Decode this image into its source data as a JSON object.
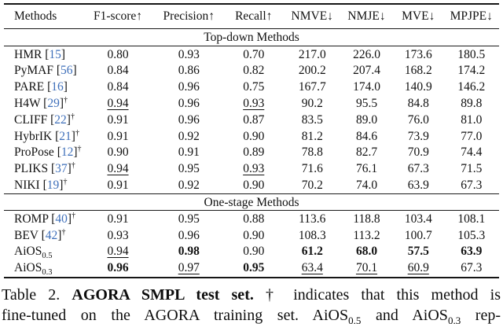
{
  "colors": {
    "citation_blue": "#3e6fba",
    "text": "#111111"
  },
  "table": {
    "columns": [
      "Methods",
      "F1-score↑",
      "Precision↑",
      "Recall↑",
      "NMVE↓",
      "NMJE↓",
      "MVE↓",
      "MPJPE↓"
    ],
    "sections": [
      {
        "label": "Top-down Methods",
        "rows": [
          {
            "method": "HMR",
            "ref": "15",
            "dagger": false,
            "sub": "",
            "cells": [
              "0.80",
              "0.93",
              "0.70",
              "217.0",
              "226.0",
              "173.6",
              "180.5"
            ],
            "styles": [
              "n",
              "n",
              "n",
              "n",
              "n",
              "n",
              "n"
            ]
          },
          {
            "method": "PyMAF",
            "ref": "56",
            "dagger": false,
            "sub": "",
            "cells": [
              "0.84",
              "0.86",
              "0.82",
              "200.2",
              "207.4",
              "168.2",
              "174.2"
            ],
            "styles": [
              "n",
              "n",
              "n",
              "n",
              "n",
              "n",
              "n"
            ]
          },
          {
            "method": "PARE",
            "ref": "16",
            "dagger": false,
            "sub": "",
            "cells": [
              "0.84",
              "0.96",
              "0.75",
              "167.7",
              "174.0",
              "140.9",
              "146.2"
            ],
            "styles": [
              "n",
              "n",
              "n",
              "n",
              "n",
              "n",
              "n"
            ]
          },
          {
            "method": "H4W",
            "ref": "29",
            "dagger": true,
            "sub": "",
            "cells": [
              "0.94",
              "0.96",
              "0.93",
              "90.2",
              "95.5",
              "84.8",
              "89.8"
            ],
            "styles": [
              "u",
              "n",
              "u",
              "n",
              "n",
              "n",
              "n"
            ]
          },
          {
            "method": "CLIFF",
            "ref": "22",
            "dagger": true,
            "sub": "",
            "cells": [
              "0.91",
              "0.96",
              "0.87",
              "83.5",
              "89.0",
              "76.0",
              "81.0"
            ],
            "styles": [
              "n",
              "n",
              "n",
              "n",
              "n",
              "n",
              "n"
            ]
          },
          {
            "method": "HybrIK",
            "ref": "21",
            "dagger": true,
            "sub": "",
            "cells": [
              "0.91",
              "0.92",
              "0.90",
              "81.2",
              "84.6",
              "73.9",
              "77.0"
            ],
            "styles": [
              "n",
              "n",
              "n",
              "n",
              "n",
              "n",
              "n"
            ]
          },
          {
            "method": "ProPose",
            "ref": "12",
            "dagger": true,
            "sub": "",
            "cells": [
              "0.90",
              "0.91",
              "0.89",
              "78.8",
              "82.7",
              "70.9",
              "74.4"
            ],
            "styles": [
              "n",
              "n",
              "n",
              "n",
              "n",
              "n",
              "n"
            ]
          },
          {
            "method": "PLIKS",
            "ref": "37",
            "dagger": true,
            "sub": "",
            "cells": [
              "0.94",
              "0.95",
              "0.93",
              "71.6",
              "76.1",
              "67.3",
              "71.5"
            ],
            "styles": [
              "u",
              "n",
              "u",
              "n",
              "n",
              "n",
              "n"
            ]
          },
          {
            "method": "NIKI",
            "ref": "19",
            "dagger": true,
            "sub": "",
            "cells": [
              "0.91",
              "0.92",
              "0.90",
              "70.2",
              "74.0",
              "63.9",
              "67.3"
            ],
            "styles": [
              "n",
              "n",
              "n",
              "n",
              "n",
              "n",
              "n"
            ]
          }
        ]
      },
      {
        "label": "One-stage Methods",
        "rows": [
          {
            "method": "ROMP",
            "ref": "40",
            "dagger": true,
            "sub": "",
            "cells": [
              "0.91",
              "0.95",
              "0.88",
              "113.6",
              "118.8",
              "103.4",
              "108.1"
            ],
            "styles": [
              "n",
              "n",
              "n",
              "n",
              "n",
              "n",
              "n"
            ]
          },
          {
            "method": "BEV",
            "ref": "42",
            "dagger": true,
            "sub": "",
            "cells": [
              "0.93",
              "0.96",
              "0.90",
              "108.3",
              "113.2",
              "100.7",
              "105.3"
            ],
            "styles": [
              "n",
              "n",
              "n",
              "n",
              "n",
              "n",
              "n"
            ]
          },
          {
            "method": "AiOS",
            "ref": "",
            "dagger": false,
            "sub": "0.5",
            "cells": [
              "0.94",
              "0.98",
              "0.90",
              "61.2",
              "68.0",
              "57.5",
              "63.9"
            ],
            "styles": [
              "u",
              "b",
              "n",
              "b",
              "b",
              "b",
              "b"
            ]
          },
          {
            "method": "AiOS",
            "ref": "",
            "dagger": false,
            "sub": "0.3",
            "cells": [
              "0.96",
              "0.97",
              "0.95",
              "63.4",
              "70.1",
              "60.9",
              "67.3"
            ],
            "styles": [
              "b",
              "u",
              "b",
              "u",
              "u",
              "u",
              "n"
            ]
          }
        ]
      }
    ]
  },
  "caption": {
    "label": "Table 2.",
    "title_bold": "AGORA SMPL test set.",
    "line1_rest": "† indicates that this method is",
    "line2": {
      "part1": "fine-tuned on the AGORA training set. AiOS",
      "sub1": "0.5",
      "part2": " and AiOS",
      "sub2": "0.3",
      "part3": " rep-"
    }
  }
}
